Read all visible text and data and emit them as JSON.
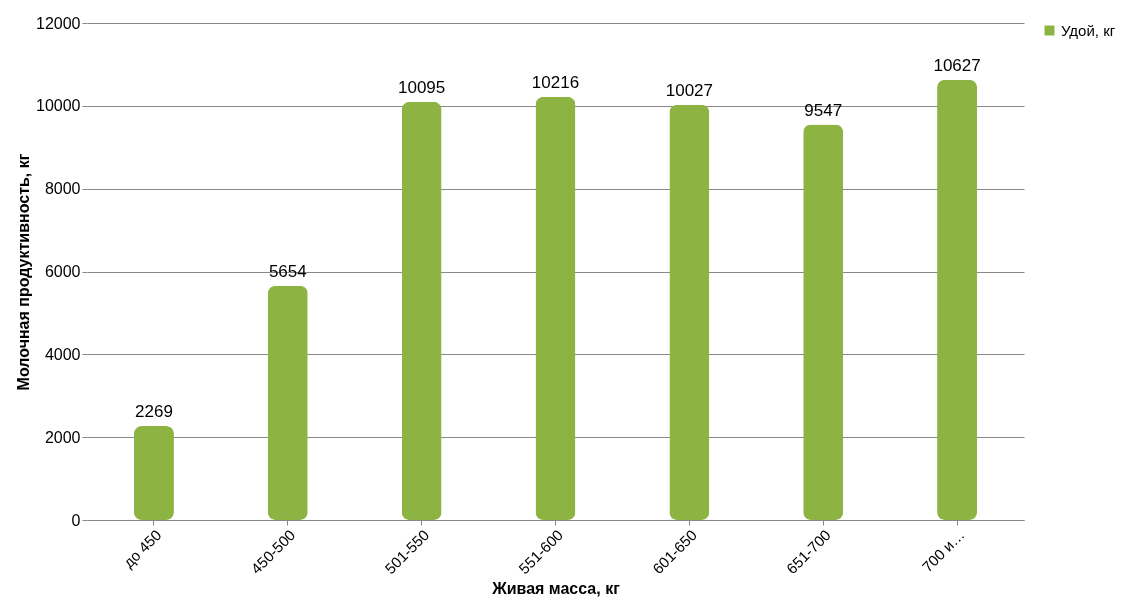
{
  "chart_data": {
    "type": "bar",
    "xlabel": "Живая масса, кг",
    "ylabel": "Молочная продуктивность, кг",
    "categories": [
      "до 450",
      "450-500",
      "501-550",
      "551-600",
      "601-650",
      "651-700",
      "700 и…"
    ],
    "series": [
      {
        "name": "Удой, кг",
        "color": "#8db443",
        "values": [
          2269,
          5654,
          10095,
          10216,
          10027,
          9547,
          10627
        ]
      }
    ],
    "ylim": [
      0,
      12000
    ],
    "yticks": [
      0,
      2000,
      4000,
      6000,
      8000,
      10000,
      12000
    ],
    "grid": "y",
    "legend": "right",
    "data_labels": true
  }
}
